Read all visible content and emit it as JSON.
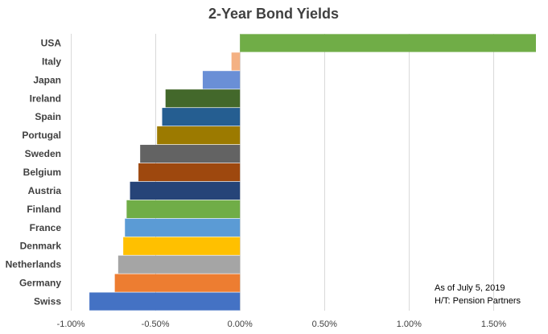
{
  "chart_data": {
    "type": "bar",
    "orientation": "horizontal",
    "title": "2-Year Bond Yields",
    "xlabel": "",
    "ylabel": "",
    "categories": [
      "USA",
      "Italy",
      "Japan",
      "Ireland",
      "Spain",
      "Portugal",
      "Sweden",
      "Belgium",
      "Austria",
      "Finland",
      "France",
      "Denmark",
      "Netherlands",
      "Germany",
      "Swiss"
    ],
    "values": [
      1.76,
      -0.05,
      -0.22,
      -0.44,
      -0.46,
      -0.49,
      -0.59,
      -0.6,
      -0.65,
      -0.67,
      -0.68,
      -0.69,
      -0.72,
      -0.74,
      -0.89
    ],
    "colors": [
      "#70ad47",
      "#f4b183",
      "#6a8fd6",
      "#43682b",
      "#255e91",
      "#9c7a00",
      "#636363",
      "#9e480e",
      "#264478",
      "#70ad47",
      "#5b9bd5",
      "#ffc000",
      "#a5a5a5",
      "#ed7d31",
      "#4472c4"
    ],
    "xlim": [
      -1.0,
      1.75
    ],
    "xticks": [
      -1.0,
      -0.5,
      0.0,
      0.5,
      1.0,
      1.5
    ],
    "xtick_labels": [
      "-1.00%",
      "-0.50%",
      "0.00%",
      "0.50%",
      "1.00%",
      "1.50%"
    ],
    "grid": "vertical",
    "legend": "none",
    "annotations": [
      "As of July 5, 2019",
      "H/T: Pension Partners"
    ]
  }
}
